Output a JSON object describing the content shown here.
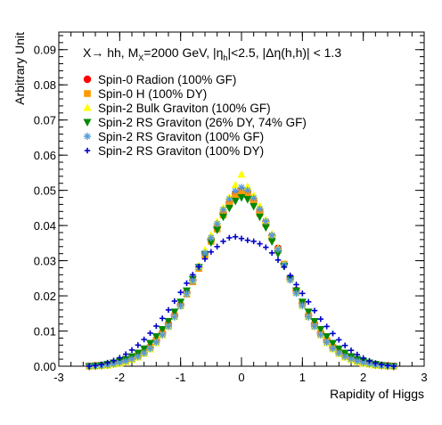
{
  "chart_data": {
    "type": "scatter",
    "title": "X→ hh, M_X=2000 GeV, |η_h|<2.5, |Δη(h,h)| < 1.3",
    "title_parts": {
      "t1": "X",
      "t2": "→ hh, M",
      "t3": "X",
      "t4": "=2000 GeV, |",
      "t5": "η",
      "t6": "h",
      "t7": "|<2.5, |Δη(h,h)| < 1.3"
    },
    "xlabel": "Rapidity of Higgs",
    "ylabel": "Arbitrary Unit",
    "xlim": [
      -3,
      3
    ],
    "ylim": [
      0,
      0.095
    ],
    "x_ticks": [
      -3,
      -2,
      -1,
      0,
      1,
      2,
      3
    ],
    "y_ticks": [
      0.0,
      0.01,
      0.02,
      0.03,
      0.04,
      0.05,
      0.06,
      0.07,
      0.08,
      0.09
    ],
    "y_tick_labels": [
      "0.00",
      "0.01",
      "0.02",
      "0.03",
      "0.04",
      "0.05",
      "0.06",
      "0.07",
      "0.08",
      "0.09"
    ],
    "grid": false,
    "legend_position": "top-left",
    "series": [
      {
        "name": "Spin-0 Radion (100% GF)",
        "color": "#ff0000",
        "marker": "circle",
        "x": [
          -2.5,
          -2.4,
          -2.3,
          -2.2,
          -2.1,
          -2.0,
          -1.9,
          -1.8,
          -1.7,
          -1.6,
          -1.5,
          -1.4,
          -1.3,
          -1.2,
          -1.1,
          -1.0,
          -0.9,
          -0.8,
          -0.7,
          -0.6,
          -0.5,
          -0.4,
          -0.3,
          -0.2,
          -0.1,
          0.0,
          0.1,
          0.2,
          0.3,
          0.4,
          0.5,
          0.6,
          0.7,
          0.8,
          0.9,
          1.0,
          1.1,
          1.2,
          1.3,
          1.4,
          1.5,
          1.6,
          1.7,
          1.8,
          1.9,
          2.0,
          2.1,
          2.2,
          2.3,
          2.4,
          2.5
        ],
        "y": [
          0.0,
          0.0001,
          0.0002,
          0.0005,
          0.0008,
          0.0012,
          0.0016,
          0.0022,
          0.003,
          0.004,
          0.0055,
          0.0075,
          0.0095,
          0.012,
          0.0145,
          0.0175,
          0.021,
          0.0245,
          0.028,
          0.032,
          0.036,
          0.0395,
          0.0435,
          0.0465,
          0.049,
          0.05,
          0.0495,
          0.047,
          0.044,
          0.041,
          0.037,
          0.0335,
          0.029,
          0.025,
          0.0215,
          0.018,
          0.0145,
          0.012,
          0.0095,
          0.0075,
          0.0055,
          0.004,
          0.003,
          0.0022,
          0.0016,
          0.0012,
          0.0008,
          0.0005,
          0.0002,
          0.0001,
          0.0
        ]
      },
      {
        "name": "Spin-0 H (100% DY)",
        "color": "#ff9900",
        "marker": "square",
        "x": [
          -2.5,
          -2.4,
          -2.3,
          -2.2,
          -2.1,
          -2.0,
          -1.9,
          -1.8,
          -1.7,
          -1.6,
          -1.5,
          -1.4,
          -1.3,
          -1.2,
          -1.1,
          -1.0,
          -0.9,
          -0.8,
          -0.7,
          -0.6,
          -0.5,
          -0.4,
          -0.3,
          -0.2,
          -0.1,
          0.0,
          0.1,
          0.2,
          0.3,
          0.4,
          0.5,
          0.6,
          0.7,
          0.8,
          0.9,
          1.0,
          1.1,
          1.2,
          1.3,
          1.4,
          1.5,
          1.6,
          1.7,
          1.8,
          1.9,
          2.0,
          2.1,
          2.2,
          2.3,
          2.4,
          2.5
        ],
        "y": [
          0.0,
          0.0001,
          0.0002,
          0.0004,
          0.0007,
          0.0011,
          0.0015,
          0.0021,
          0.0029,
          0.0039,
          0.0052,
          0.0072,
          0.0092,
          0.0115,
          0.0142,
          0.0172,
          0.0205,
          0.024,
          0.0278,
          0.0315,
          0.0355,
          0.039,
          0.043,
          0.046,
          0.0485,
          0.0495,
          0.049,
          0.047,
          0.0435,
          0.0405,
          0.0365,
          0.033,
          0.029,
          0.0248,
          0.0212,
          0.0176,
          0.0143,
          0.0116,
          0.0093,
          0.0073,
          0.0053,
          0.0039,
          0.0029,
          0.0021,
          0.0015,
          0.0011,
          0.0007,
          0.0004,
          0.0002,
          0.0001,
          0.0
        ]
      },
      {
        "name": "Spin-2 Bulk Graviton (100% GF)",
        "color": "#ffff00",
        "marker": "triangle-up",
        "x": [
          -2.5,
          -2.4,
          -2.3,
          -2.2,
          -2.1,
          -2.0,
          -1.9,
          -1.8,
          -1.7,
          -1.6,
          -1.5,
          -1.4,
          -1.3,
          -1.2,
          -1.1,
          -1.0,
          -0.9,
          -0.8,
          -0.7,
          -0.6,
          -0.5,
          -0.4,
          -0.3,
          -0.2,
          -0.1,
          0.0,
          0.1,
          0.2,
          0.3,
          0.4,
          0.5,
          0.6,
          0.7,
          0.8,
          0.9,
          1.0,
          1.1,
          1.2,
          1.3,
          1.4,
          1.5,
          1.6,
          1.7,
          1.8,
          1.9,
          2.0,
          2.1,
          2.2,
          2.3,
          2.4,
          2.5
        ],
        "y": [
          0.0,
          0.0,
          0.0001,
          0.0002,
          0.0005,
          0.0008,
          0.0012,
          0.0018,
          0.0025,
          0.0035,
          0.0048,
          0.0066,
          0.0088,
          0.0112,
          0.014,
          0.0172,
          0.0208,
          0.0245,
          0.0285,
          0.033,
          0.0372,
          0.041,
          0.045,
          0.048,
          0.0515,
          0.0545,
          0.051,
          0.0485,
          0.0455,
          0.0415,
          0.0375,
          0.0335,
          0.029,
          0.0248,
          0.021,
          0.0172,
          0.014,
          0.0112,
          0.0088,
          0.0066,
          0.0048,
          0.0035,
          0.0025,
          0.0018,
          0.0012,
          0.0008,
          0.0005,
          0.0002,
          0.0001,
          0.0,
          0.0
        ]
      },
      {
        "name": "Spin-2 RS Graviton (26% DY,  74% GF)",
        "color": "#008800",
        "marker": "triangle-down",
        "x": [
          -2.5,
          -2.4,
          -2.3,
          -2.2,
          -2.1,
          -2.0,
          -1.9,
          -1.8,
          -1.7,
          -1.6,
          -1.5,
          -1.4,
          -1.3,
          -1.2,
          -1.1,
          -1.0,
          -0.9,
          -0.8,
          -0.7,
          -0.6,
          -0.5,
          -0.4,
          -0.3,
          -0.2,
          -0.1,
          0.0,
          0.1,
          0.2,
          0.3,
          0.4,
          0.5,
          0.6,
          0.7,
          0.8,
          0.9,
          1.0,
          1.1,
          1.2,
          1.3,
          1.4,
          1.5,
          1.6,
          1.7,
          1.8,
          1.9,
          2.0,
          2.1,
          2.2,
          2.3,
          2.4,
          2.5
        ],
        "y": [
          0.0,
          0.0001,
          0.0003,
          0.0006,
          0.001,
          0.0015,
          0.002,
          0.0028,
          0.0038,
          0.005,
          0.0066,
          0.0085,
          0.0105,
          0.0128,
          0.0155,
          0.0183,
          0.0215,
          0.0248,
          0.0282,
          0.0318,
          0.0352,
          0.0388,
          0.0425,
          0.045,
          0.047,
          0.048,
          0.0475,
          0.0455,
          0.0425,
          0.0395,
          0.0355,
          0.032,
          0.0285,
          0.0248,
          0.0215,
          0.0183,
          0.0155,
          0.0128,
          0.0105,
          0.0085,
          0.0066,
          0.005,
          0.0038,
          0.0028,
          0.002,
          0.0015,
          0.001,
          0.0006,
          0.0003,
          0.0001,
          0.0
        ]
      },
      {
        "name": "Spin-2 RS Graviton (100% GF)",
        "color": "#5599dd",
        "marker": "star",
        "x": [
          -2.5,
          -2.4,
          -2.3,
          -2.2,
          -2.1,
          -2.0,
          -1.9,
          -1.8,
          -1.7,
          -1.6,
          -1.5,
          -1.4,
          -1.3,
          -1.2,
          -1.1,
          -1.0,
          -0.9,
          -0.8,
          -0.7,
          -0.6,
          -0.5,
          -0.4,
          -0.3,
          -0.2,
          -0.1,
          0.0,
          0.1,
          0.2,
          0.3,
          0.4,
          0.5,
          0.6,
          0.7,
          0.8,
          0.9,
          1.0,
          1.1,
          1.2,
          1.3,
          1.4,
          1.5,
          1.6,
          1.7,
          1.8,
          1.9,
          2.0,
          2.1,
          2.2,
          2.3,
          2.4,
          2.5
        ],
        "y": [
          0.0,
          0.0,
          0.0001,
          0.0003,
          0.0006,
          0.001,
          0.0014,
          0.002,
          0.0027,
          0.0037,
          0.005,
          0.0068,
          0.0089,
          0.0113,
          0.014,
          0.0171,
          0.0206,
          0.0243,
          0.0282,
          0.0322,
          0.0365,
          0.0405,
          0.0445,
          0.0475,
          0.0498,
          0.0508,
          0.05,
          0.0478,
          0.0447,
          0.0412,
          0.0372,
          0.0332,
          0.0288,
          0.0245,
          0.0207,
          0.0172,
          0.014,
          0.0113,
          0.0089,
          0.0068,
          0.005,
          0.0037,
          0.0027,
          0.002,
          0.0014,
          0.001,
          0.0006,
          0.0003,
          0.0001,
          0.0,
          0.0
        ]
      },
      {
        "name": "Spin-2 RS Graviton (100% DY)",
        "color": "#0000cc",
        "marker": "cross",
        "x": [
          -2.5,
          -2.4,
          -2.3,
          -2.2,
          -2.1,
          -2.0,
          -1.9,
          -1.8,
          -1.7,
          -1.6,
          -1.5,
          -1.4,
          -1.3,
          -1.2,
          -1.1,
          -1.0,
          -0.9,
          -0.8,
          -0.7,
          -0.6,
          -0.5,
          -0.4,
          -0.3,
          -0.2,
          -0.1,
          0.0,
          0.1,
          0.2,
          0.3,
          0.4,
          0.5,
          0.6,
          0.7,
          0.8,
          0.9,
          1.0,
          1.1,
          1.2,
          1.3,
          1.4,
          1.5,
          1.6,
          1.7,
          1.8,
          1.9,
          2.0,
          2.1,
          2.2,
          2.3,
          2.4,
          2.5
        ],
        "y": [
          0.0,
          0.0002,
          0.0005,
          0.001,
          0.0016,
          0.0024,
          0.0034,
          0.0046,
          0.006,
          0.0076,
          0.0094,
          0.0114,
          0.0136,
          0.016,
          0.0185,
          0.021,
          0.0236,
          0.026,
          0.0283,
          0.0305,
          0.0325,
          0.034,
          0.0355,
          0.0365,
          0.0368,
          0.0363,
          0.0358,
          0.0355,
          0.0348,
          0.0338,
          0.0322,
          0.0302,
          0.0282,
          0.0258,
          0.0232,
          0.0207,
          0.0183,
          0.0158,
          0.0134,
          0.0113,
          0.0093,
          0.0075,
          0.0059,
          0.0045,
          0.0033,
          0.0023,
          0.0015,
          0.0009,
          0.0005,
          0.0002,
          0.0
        ]
      }
    ]
  }
}
